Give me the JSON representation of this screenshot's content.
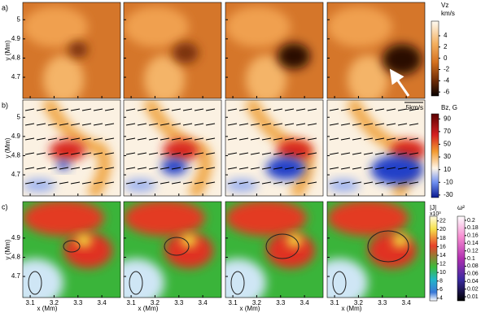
{
  "figure": {
    "rows": [
      {
        "label": "a)",
        "yticks": [
          5,
          4.9,
          4.8,
          4.7
        ]
      },
      {
        "label": "b)",
        "yticks": [
          5,
          4.9,
          4.8,
          4.7
        ]
      },
      {
        "label": "c)",
        "yticks": [
          4.9,
          4.8,
          4.7
        ]
      }
    ],
    "x_axis": {
      "label": "x (Mm)",
      "lim": [
        3.069,
        3.478
      ],
      "ticks": [
        3.1,
        3.2,
        3.3,
        3.4
      ]
    },
    "y_axis": {
      "label": "y (Mm)",
      "lim": [
        4.59,
        5.09
      ]
    },
    "arrow_label": "5km/s",
    "colorbars": [
      {
        "title": "Vz",
        "unit": "km/s",
        "lim": [
          -6.7,
          6.6
        ],
        "ticks": [
          4,
          2,
          0,
          -2,
          -4,
          -6
        ]
      },
      {
        "title": "Bz, G",
        "lim": [
          -34,
          98
        ],
        "ticks": [
          90,
          70,
          50,
          30,
          10,
          -10,
          -30
        ]
      },
      {
        "title": "|J|",
        "unit": "x10³",
        "lim": [
          3.4,
          23.1
        ],
        "ticks": [
          22,
          20,
          18,
          16,
          14,
          12,
          10,
          8,
          6,
          4
        ]
      },
      {
        "title": "ω²",
        "ticks": [
          0.2,
          0.18,
          0.16,
          0.14,
          0.12,
          0.1,
          0.08,
          0.06,
          0.04,
          0.02,
          0.01
        ]
      }
    ]
  }
}
